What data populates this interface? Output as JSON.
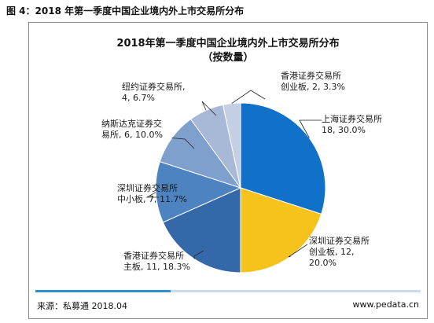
{
  "figure_label": "图 4：2018 年第一季度中国企业境内外上市交易所分布",
  "source": "来源：私募通 2018.04",
  "website": "www.pedata.cn",
  "chart_data": {
    "type": "pie",
    "title": "2018年第一季度中国企业境内外上市交易所分布",
    "subtitle": "（按数量）",
    "slices": [
      {
        "label_lines": [
          "上海证券交易所",
          "18, 30.0%"
        ],
        "value": 18,
        "percent": 30.0,
        "color": "#1170c8"
      },
      {
        "label_lines": [
          "深圳证券交易所",
          "创业板, 12,",
          "20.0%"
        ],
        "value": 12,
        "percent": 20.0,
        "color": "#f6c21c"
      },
      {
        "label_lines": [
          "香港证券交易所",
          "主板, 11, 18.3%"
        ],
        "value": 11,
        "percent": 18.3,
        "color": "#3568a9"
      },
      {
        "label_lines": [
          "深圳证券交易所",
          "中小板, 7, 11.7%"
        ],
        "value": 7,
        "percent": 11.7,
        "color": "#4d83c0"
      },
      {
        "label_lines": [
          "纳斯达克证券交",
          "易所, 6, 10.0%"
        ],
        "value": 6,
        "percent": 10.0,
        "color": "#7f9fcd"
      },
      {
        "label_lines": [
          "纽约证券交易所,",
          "4, 6.7%"
        ],
        "value": 4,
        "percent": 6.7,
        "color": "#a8b9d8"
      },
      {
        "label_lines": [
          "香港证券交易所",
          "创业板, 2, 3.3%"
        ],
        "value": 2,
        "percent": 3.3,
        "color": "#c5cfe3"
      }
    ]
  }
}
